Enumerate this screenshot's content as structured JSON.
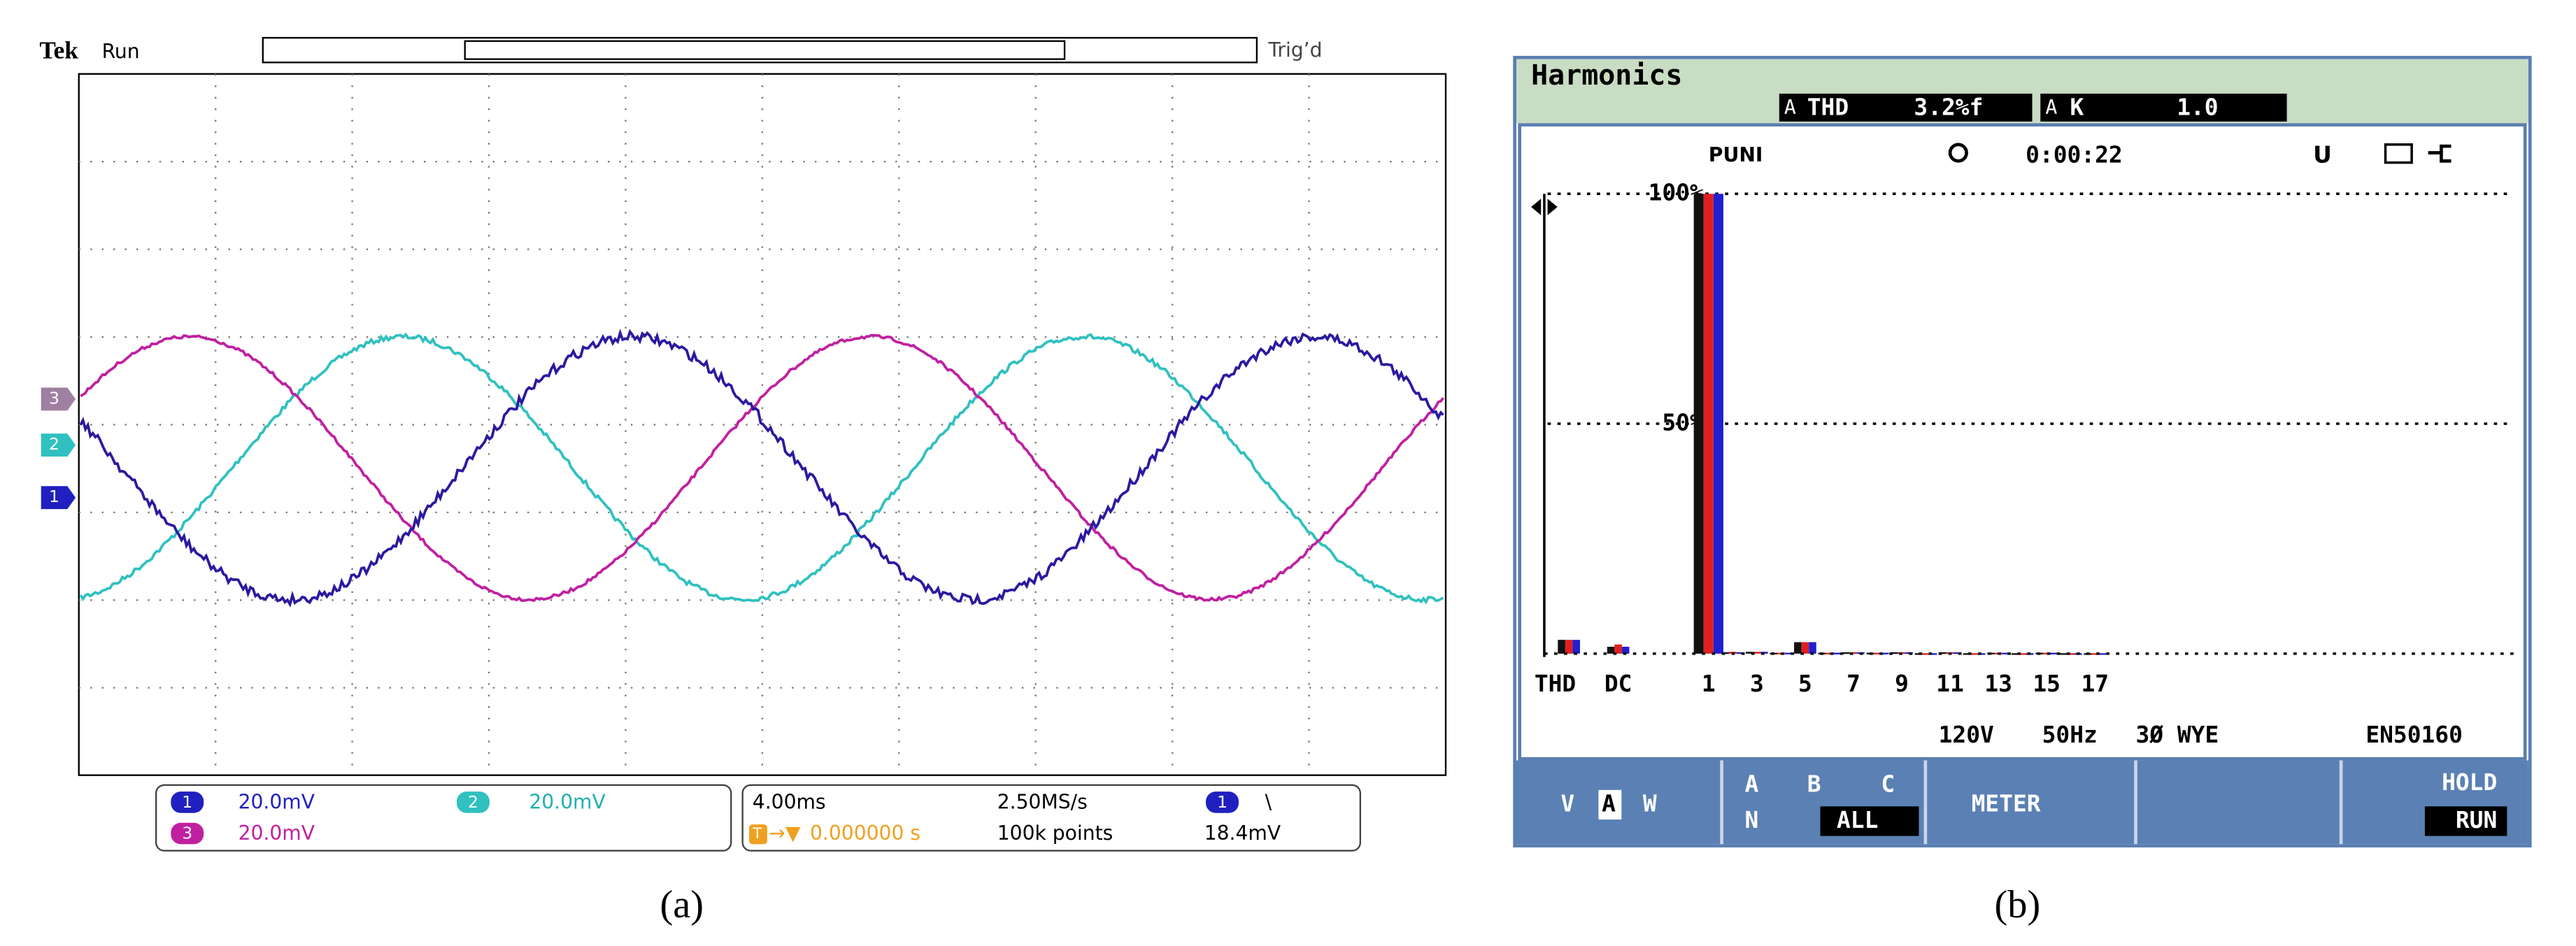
{
  "panel_a": {
    "label": "(a)",
    "brand": "Tek",
    "status": "Run",
    "trigger_status": "Trig’d",
    "trigger_marker": "T",
    "channel_markers": [
      "3",
      "2",
      "1"
    ],
    "readouts": {
      "ch1_id": "1",
      "ch1_scale": "20.0mV",
      "ch2_id": "2",
      "ch2_scale": "20.0mV",
      "ch3_id": "3",
      "ch3_scale": "20.0mV",
      "timebase": "4.00ms",
      "sample_rate": "2.50MS/s",
      "trigger_prefix": "T",
      "trigger_arrow": "→▼",
      "trigger_pos": "0.000000 s",
      "record_length": "100k points",
      "trigger_source": "1",
      "trigger_slope": "\\",
      "trigger_level": "18.4mV"
    }
  },
  "panel_b": {
    "label": "(b)",
    "title": "Harmonics",
    "thd_phase": "A",
    "thd_label": "THD",
    "thd_value": "3.2%f",
    "k_phase": "A",
    "k_label": "K",
    "k_value": "1.0",
    "measure": "PUNI",
    "timer": "0:00:22",
    "status": "U",
    "footer": [
      "120V",
      "50Hz",
      "3Ø WYE",
      "EN50160"
    ],
    "softkeys": {
      "v": "V",
      "a": "A",
      "w": "W",
      "phase_a": "A",
      "phase_b": "B",
      "phase_c": "C",
      "phase_n": "N",
      "all": "ALL",
      "meter": "METER",
      "hold": "HOLD",
      "run": "RUN"
    }
  },
  "chart_data": {
    "type": "bar",
    "categories": [
      "THD",
      "DC",
      "1",
      null,
      "3",
      null,
      "5",
      null,
      "7",
      null,
      "9",
      null,
      "11",
      null,
      "13",
      null,
      "15",
      null,
      "17"
    ],
    "series": [
      {
        "color": "#111111",
        "values": [
          3,
          1.5,
          100,
          0.3,
          0.4,
          0.2,
          2.5,
          0.2,
          0.3,
          0.2,
          0.3,
          0.1,
          0.3,
          0.1,
          0.2,
          0.1,
          0.2,
          0.1,
          0.1
        ]
      },
      {
        "color": "#e02020",
        "values": [
          3,
          2,
          100,
          0.4,
          0.4,
          0.2,
          2.5,
          0.2,
          0.3,
          0.2,
          0.3,
          0.1,
          0.3,
          0.1,
          0.2,
          0.1,
          0.2,
          0.1,
          0.1
        ]
      },
      {
        "color": "#2020d0",
        "values": [
          3,
          1.5,
          100,
          0.3,
          0.4,
          0.2,
          2.5,
          0.2,
          0.3,
          0.2,
          0.3,
          0.1,
          0.3,
          0.1,
          0.2,
          0.1,
          0.2,
          0.1,
          0.1
        ]
      }
    ],
    "ylim": [
      0,
      100
    ],
    "yticks": [
      {
        "value": 50,
        "label": "50%"
      },
      {
        "value": 100,
        "label": "100%"
      }
    ],
    "grid": true
  }
}
